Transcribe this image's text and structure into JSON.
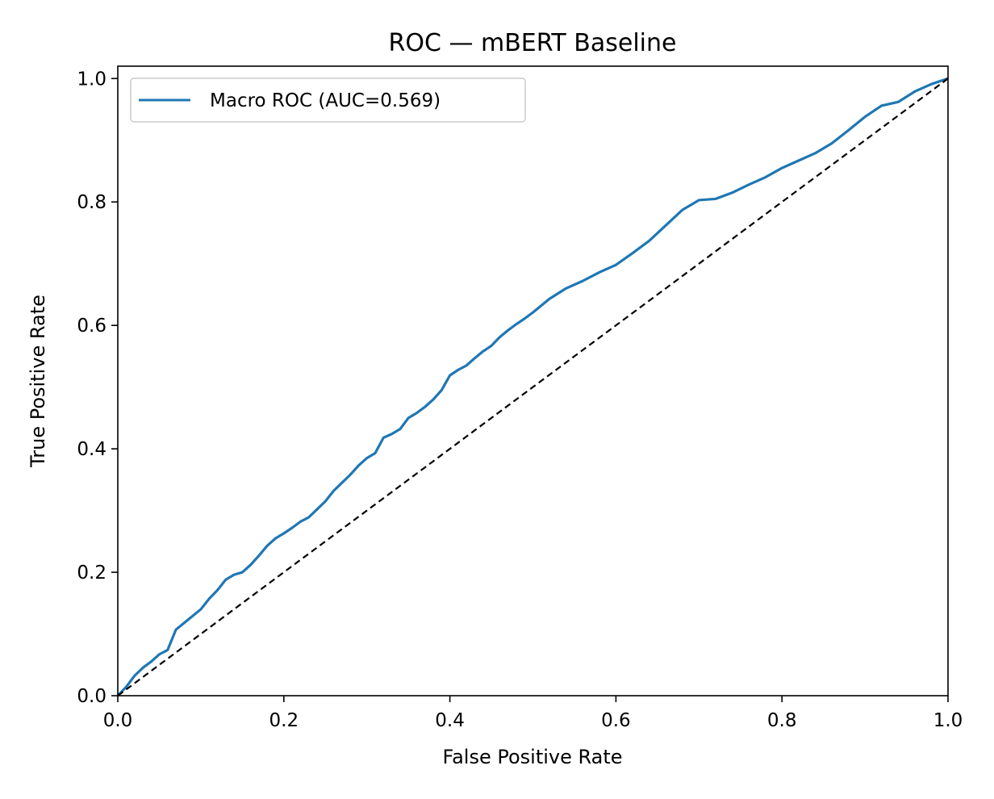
{
  "chart_data": {
    "type": "line",
    "title": "ROC — mBERT Baseline",
    "xlabel": "False Positive Rate",
    "ylabel": "True Positive Rate",
    "xlim": [
      0.0,
      1.0
    ],
    "ylim": [
      0.0,
      1.02
    ],
    "xticks": [
      0.0,
      0.2,
      0.4,
      0.6,
      0.8,
      1.0
    ],
    "xtick_labels": [
      "0.0",
      "0.2",
      "0.4",
      "0.6",
      "0.8",
      "1.0"
    ],
    "yticks": [
      0.0,
      0.2,
      0.4,
      0.6,
      0.8,
      1.0
    ],
    "ytick_labels": [
      "0.0",
      "0.2",
      "0.4",
      "0.6",
      "0.8",
      "1.0"
    ],
    "grid": false,
    "legend": {
      "position": "top-left"
    },
    "series": [
      {
        "name": "Macro ROC (AUC=0.569)",
        "color": "#1f77b4",
        "style": "solid",
        "x": [
          0.0,
          0.01,
          0.02,
          0.03,
          0.04,
          0.05,
          0.06,
          0.07,
          0.08,
          0.09,
          0.1,
          0.11,
          0.12,
          0.13,
          0.14,
          0.15,
          0.16,
          0.17,
          0.18,
          0.19,
          0.2,
          0.21,
          0.22,
          0.23,
          0.24,
          0.25,
          0.26,
          0.27,
          0.28,
          0.29,
          0.3,
          0.31,
          0.32,
          0.33,
          0.34,
          0.35,
          0.36,
          0.37,
          0.38,
          0.39,
          0.4,
          0.41,
          0.42,
          0.43,
          0.44,
          0.45,
          0.46,
          0.47,
          0.48,
          0.49,
          0.5,
          0.52,
          0.54,
          0.56,
          0.58,
          0.6,
          0.62,
          0.64,
          0.66,
          0.68,
          0.7,
          0.72,
          0.74,
          0.76,
          0.78,
          0.8,
          0.82,
          0.84,
          0.86,
          0.88,
          0.9,
          0.92,
          0.94,
          0.96,
          0.98,
          1.0
        ],
        "y": [
          0.0,
          0.014,
          0.032,
          0.045,
          0.055,
          0.067,
          0.074,
          0.107,
          0.118,
          0.129,
          0.14,
          0.157,
          0.171,
          0.188,
          0.196,
          0.2,
          0.212,
          0.227,
          0.243,
          0.255,
          0.263,
          0.272,
          0.282,
          0.289,
          0.302,
          0.315,
          0.332,
          0.345,
          0.358,
          0.373,
          0.385,
          0.393,
          0.418,
          0.424,
          0.432,
          0.45,
          0.458,
          0.468,
          0.48,
          0.495,
          0.519,
          0.528,
          0.535,
          0.547,
          0.558,
          0.567,
          0.581,
          0.592,
          0.602,
          0.611,
          0.621,
          0.643,
          0.66,
          0.672,
          0.686,
          0.698,
          0.717,
          0.737,
          0.762,
          0.787,
          0.803,
          0.805,
          0.815,
          0.828,
          0.84,
          0.855,
          0.867,
          0.879,
          0.895,
          0.916,
          0.938,
          0.956,
          0.962,
          0.979,
          0.991,
          1.0
        ]
      },
      {
        "name": "",
        "color": "#000000",
        "style": "dashed",
        "x": [
          0.0,
          1.0
        ],
        "y": [
          0.0,
          1.0
        ]
      }
    ]
  }
}
